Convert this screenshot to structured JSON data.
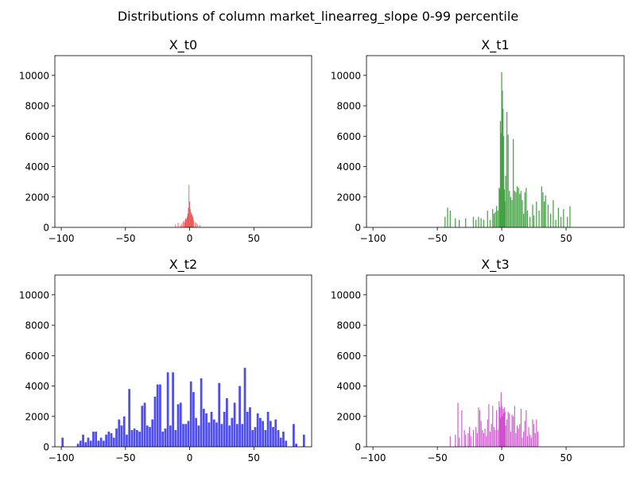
{
  "title": "Distributions of column market_linearreg_slope 0-99 percentile",
  "chart_data": [
    {
      "type": "histogram",
      "title": "X_t0",
      "color": "#e63b3b",
      "xlim": [
        -105,
        95
      ],
      "ylim": [
        0,
        11300
      ],
      "xticks": [
        -100,
        -50,
        0,
        50
      ],
      "yticks": [
        0,
        2000,
        4000,
        6000,
        8000,
        10000
      ],
      "xticklabels": [
        "−100",
        "−50",
        "0",
        "50"
      ],
      "yticklabels": [
        "0",
        "2000",
        "4000",
        "6000",
        "8000",
        "10000"
      ],
      "bar_width": 0.5,
      "x": [
        -11,
        -9,
        -7,
        -6,
        -5,
        -4,
        -3.5,
        -3,
        -2.5,
        -2,
        -1.5,
        -1,
        -0.5,
        0,
        0.5,
        1,
        1.5,
        2,
        2.5,
        3,
        4,
        5,
        6,
        8
      ],
      "values": [
        200,
        300,
        150,
        250,
        400,
        350,
        500,
        600,
        550,
        700,
        900,
        1300,
        2800,
        1700,
        1200,
        1000,
        900,
        800,
        700,
        500,
        350,
        300,
        200,
        150
      ]
    },
    {
      "type": "histogram",
      "title": "X_t1",
      "color": "#3a9e3a",
      "xlim": [
        -105,
        95
      ],
      "ylim": [
        0,
        11300
      ],
      "xticks": [
        -100,
        -50,
        0,
        50
      ],
      "yticks": [
        0,
        2000,
        4000,
        6000,
        8000,
        10000
      ],
      "xticklabels": [
        "−100",
        "−50",
        "0",
        "50"
      ],
      "yticklabels": [
        "0",
        "2000",
        "4000",
        "6000",
        "8000",
        "10000"
      ],
      "bar_width": 0.8,
      "x": [
        -44,
        -42,
        -40,
        -36,
        -33,
        -28,
        -22,
        -20,
        -18,
        -16,
        -14,
        -11,
        -9,
        -7,
        -6,
        -5,
        -4,
        -3,
        -2,
        -1.5,
        -1,
        -0.5,
        0,
        0.5,
        1,
        1.5,
        2,
        2.5,
        3,
        4,
        5,
        6,
        7,
        8,
        9,
        10,
        11,
        12,
        13,
        14,
        15,
        16,
        17,
        18,
        19,
        20,
        22,
        24,
        25,
        27,
        29,
        31,
        32,
        33,
        34,
        36,
        38,
        40,
        42,
        44,
        46,
        48,
        51,
        53
      ],
      "values": [
        700,
        1300,
        1100,
        600,
        500,
        600,
        700,
        500,
        700,
        600,
        500,
        1100,
        500,
        1200,
        900,
        1000,
        1400,
        1100,
        2600,
        2500,
        7000,
        6200,
        10200,
        9000,
        7800,
        6000,
        2500,
        1700,
        3400,
        7600,
        6100,
        2400,
        2000,
        1800,
        5800,
        2400,
        2300,
        2700,
        2600,
        2200,
        2400,
        1800,
        900,
        2300,
        2600,
        1100,
        700,
        1500,
        800,
        1700,
        1100,
        2700,
        2300,
        1700,
        2100,
        1500,
        900,
        1800,
        500,
        1300,
        700,
        1200,
        700,
        1400
      ]
    },
    {
      "type": "histogram",
      "title": "X_t2",
      "color": "#3a3af0",
      "xlim": [
        -105,
        95
      ],
      "ylim": [
        0,
        11300
      ],
      "xticks": [
        -100,
        -50,
        0,
        50
      ],
      "yticks": [
        0,
        2000,
        4000,
        6000,
        8000,
        10000
      ],
      "xticklabels": [
        "−100",
        "−50",
        "0",
        "50"
      ],
      "yticklabels": [
        "0",
        "2000",
        "4000",
        "6000",
        "8000",
        "10000"
      ],
      "bar_width": 1.7,
      "x": [
        -99,
        -97,
        -95,
        -93,
        -91,
        -89,
        -87,
        -85,
        -83,
        -81,
        -79,
        -77,
        -75,
        -73,
        -71,
        -69,
        -67,
        -65,
        -63,
        -61,
        -59,
        -57,
        -55,
        -53,
        -51,
        -49,
        -47,
        -45,
        -43,
        -41,
        -39,
        -37,
        -35,
        -33,
        -31,
        -29,
        -27,
        -25,
        -23,
        -21,
        -19,
        -17,
        -15,
        -13,
        -11,
        -9,
        -7,
        -5,
        -3,
        -1,
        1,
        3,
        5,
        7,
        9,
        11,
        13,
        15,
        17,
        19,
        21,
        23,
        25,
        27,
        29,
        31,
        33,
        35,
        37,
        39,
        41,
        43,
        45,
        47,
        49,
        51,
        53,
        55,
        57,
        59,
        61,
        63,
        65,
        67,
        69,
        71,
        73,
        75,
        77,
        79,
        81,
        83,
        85,
        87,
        89
      ],
      "values": [
        600,
        0,
        0,
        0,
        0,
        0,
        200,
        400,
        800,
        300,
        600,
        400,
        1000,
        1000,
        400,
        600,
        400,
        800,
        1000,
        900,
        600,
        1200,
        1800,
        1400,
        2000,
        800,
        3800,
        1100,
        1200,
        1100,
        1000,
        2700,
        2900,
        1400,
        1300,
        1800,
        3300,
        4100,
        4100,
        1000,
        1200,
        4900,
        1400,
        4900,
        1100,
        2800,
        2900,
        1500,
        1500,
        1700,
        4300,
        3600,
        1900,
        1400,
        4500,
        2500,
        2200,
        1600,
        2300,
        1800,
        1600,
        4200,
        1500,
        2300,
        3200,
        1400,
        1900,
        2900,
        1500,
        4000,
        1500,
        5200,
        2300,
        2600,
        1100,
        1300,
        2200,
        1900,
        1700,
        1100,
        2300,
        1700,
        1300,
        1800,
        1100,
        600,
        1000,
        400,
        0,
        0,
        1500,
        200,
        0,
        0,
        800
      ]
    },
    {
      "type": "histogram",
      "title": "X_t3",
      "color": "#cc44cc",
      "xlim": [
        -105,
        95
      ],
      "ylim": [
        0,
        11300
      ],
      "xticks": [
        -100,
        -50,
        0,
        50
      ],
      "yticks": [
        0,
        2000,
        4000,
        6000,
        8000,
        10000
      ],
      "xticklabels": [
        "−100",
        "−50",
        "0",
        "50"
      ],
      "yticklabels": [
        "0",
        "2000",
        "4000",
        "6000",
        "8000",
        "10000"
      ],
      "bar_width": 0.7,
      "x": [
        -40,
        -36,
        -34,
        -33,
        -31,
        -29,
        -28,
        -26,
        -25,
        -24,
        -22,
        -20,
        -19,
        -18,
        -17,
        -16,
        -15,
        -14,
        -13,
        -12,
        -11,
        -10,
        -9,
        -8,
        -7,
        -6,
        -5,
        -4,
        -3,
        -2,
        -1.5,
        -1,
        -0.5,
        0,
        0.5,
        1,
        1.5,
        2,
        2.5,
        3,
        4,
        5,
        6,
        7,
        8,
        9,
        10,
        11,
        12,
        13,
        14,
        15,
        16,
        17,
        18,
        19,
        20,
        21,
        22,
        23,
        24,
        25,
        26,
        27,
        28
      ],
      "values": [
        700,
        800,
        2900,
        600,
        2400,
        1100,
        800,
        900,
        1300,
        700,
        1100,
        1300,
        900,
        2600,
        2400,
        1700,
        1100,
        900,
        1200,
        700,
        1800,
        2800,
        1000,
        1500,
        2700,
        1300,
        1100,
        2400,
        1100,
        3000,
        2600,
        1900,
        3600,
        2700,
        2000,
        2500,
        2200,
        2600,
        2300,
        1400,
        1800,
        2300,
        2200,
        1000,
        2100,
        2000,
        2700,
        900,
        1400,
        1200,
        1500,
        2500,
        600,
        1000,
        1700,
        2400,
        700,
        1300,
        800,
        600,
        1800,
        1500,
        900,
        1800,
        1000
      ]
    }
  ]
}
